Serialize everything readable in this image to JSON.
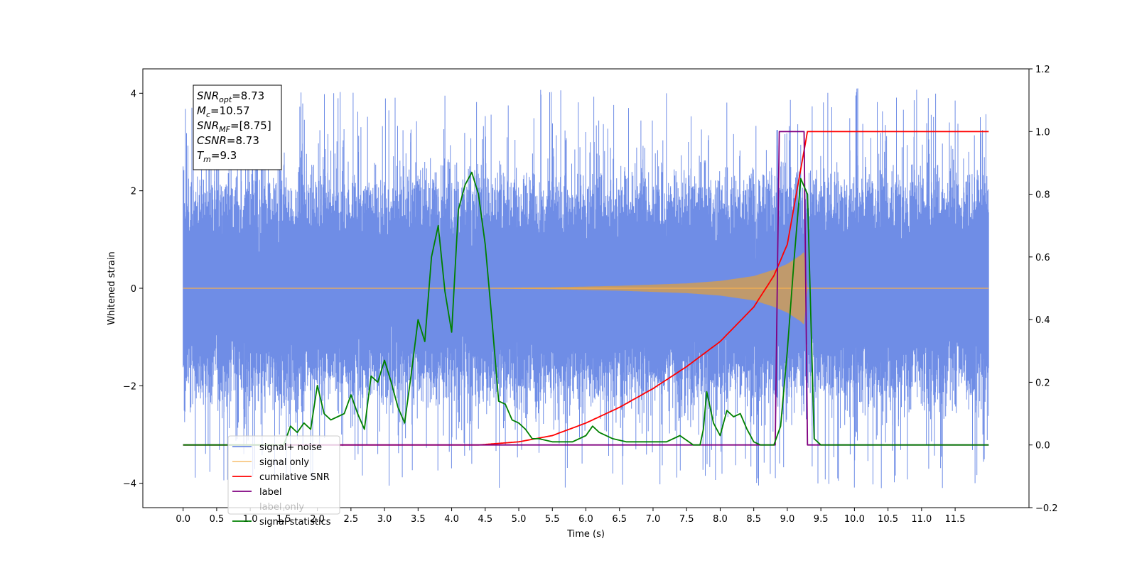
{
  "chart_data": {
    "type": "line",
    "xlabel": "Time (s)",
    "ylabel_left": "Whitened strain",
    "xlim": [
      -0.6,
      12.6
    ],
    "ylim_left": [
      -4.5,
      4.5
    ],
    "ylim_right": [
      -0.2,
      1.2
    ],
    "xticks": [
      "0.0",
      "0.5",
      "1.0",
      "1.5",
      "2.0",
      "2.5",
      "3.0",
      "3.5",
      "4.0",
      "4.5",
      "5.0",
      "5.5",
      "6.0",
      "6.5",
      "7.0",
      "7.5",
      "8.0",
      "8.5",
      "9.0",
      "9.5",
      "10.0",
      "10.5",
      "11.0",
      "11.5"
    ],
    "yticks_left": [
      "−4",
      "−2",
      "0",
      "2",
      "4"
    ],
    "yticks_right": [
      "−0.2",
      "0.0",
      "0.2",
      "0.4",
      "0.6",
      "0.8",
      "1.0",
      "1.2"
    ],
    "colors": {
      "noise": "#6f8de6",
      "signal": "#f5b050",
      "cumulative": "#ff0000",
      "label": "#800080",
      "stats": "#008000"
    },
    "legend": {
      "position": "lower-left",
      "entries": [
        "signal+ noise",
        "signal only",
        "cumilative SNR",
        "label",
        "label only",
        "signal statistics"
      ]
    },
    "annotation": [
      {
        "base": "SNR",
        "sub": "opt",
        "value": "=8.73"
      },
      {
        "base": "M",
        "sub": "c",
        "value": "=10.57"
      },
      {
        "base": "SNR",
        "sub": "MF",
        "value": "=[8.75]"
      },
      {
        "base": "CSNR",
        "sub": "",
        "value": "=8.73"
      },
      {
        "base": "T",
        "sub": "m",
        "value": "=9.3"
      }
    ],
    "series": [
      {
        "name": "signal+ noise",
        "axis": "left",
        "x_range": [
          0.0,
          12.0
        ],
        "band_upper": 2.0,
        "band_lower": -2.0,
        "peak_max": 4.1,
        "peak_min": -4.1
      },
      {
        "name": "signal only",
        "axis": "left",
        "x_range": [
          0.0,
          12.0
        ],
        "envelope": {
          "x": [
            0.0,
            4.0,
            5.5,
            6.5,
            7.5,
            8.0,
            8.5,
            8.8,
            9.0,
            9.2,
            9.25,
            9.3,
            12.0
          ],
          "y": [
            0.0,
            0.0,
            0.02,
            0.05,
            0.1,
            0.15,
            0.25,
            0.38,
            0.5,
            0.68,
            0.75,
            0.0,
            0.0
          ]
        }
      },
      {
        "name": "cumilative SNR",
        "axis": "right",
        "x": [
          0.0,
          4.4,
          5.0,
          5.5,
          6.0,
          6.5,
          7.0,
          7.5,
          8.0,
          8.5,
          8.8,
          9.0,
          9.2,
          9.3,
          12.0
        ],
        "y": [
          0.0,
          0.0,
          0.01,
          0.03,
          0.07,
          0.12,
          0.18,
          0.25,
          0.33,
          0.44,
          0.54,
          0.64,
          0.88,
          1.0,
          1.0
        ]
      },
      {
        "name": "label",
        "axis": "right",
        "x": [
          0.0,
          8.82,
          8.88,
          9.25,
          9.3,
          12.0
        ],
        "y": [
          0.0,
          0.0,
          1.0,
          1.0,
          0.0,
          0.0
        ]
      },
      {
        "name": "signal statistics",
        "axis": "right",
        "x": [
          0.0,
          1.5,
          1.6,
          1.7,
          1.8,
          1.9,
          2.0,
          2.1,
          2.2,
          2.3,
          2.4,
          2.5,
          2.6,
          2.7,
          2.8,
          2.9,
          3.0,
          3.1,
          3.2,
          3.3,
          3.4,
          3.5,
          3.6,
          3.7,
          3.8,
          3.9,
          4.0,
          4.1,
          4.2,
          4.3,
          4.4,
          4.5,
          4.6,
          4.7,
          4.8,
          4.9,
          5.0,
          5.1,
          5.2,
          5.3,
          5.5,
          5.8,
          6.0,
          6.1,
          6.2,
          6.4,
          6.6,
          6.8,
          7.0,
          7.2,
          7.4,
          7.6,
          7.7,
          7.75,
          7.8,
          7.85,
          7.9,
          8.0,
          8.1,
          8.2,
          8.3,
          8.4,
          8.5,
          8.6,
          8.7,
          8.8,
          8.9,
          9.0,
          9.1,
          9.2,
          9.3,
          9.4,
          9.5,
          9.7,
          12.0
        ],
        "y": [
          0.0,
          0.0,
          0.06,
          0.04,
          0.07,
          0.05,
          0.19,
          0.1,
          0.08,
          0.09,
          0.1,
          0.16,
          0.1,
          0.05,
          0.22,
          0.2,
          0.27,
          0.2,
          0.12,
          0.07,
          0.23,
          0.4,
          0.33,
          0.6,
          0.7,
          0.49,
          0.36,
          0.75,
          0.83,
          0.87,
          0.8,
          0.64,
          0.4,
          0.14,
          0.13,
          0.08,
          0.07,
          0.05,
          0.02,
          0.02,
          0.01,
          0.01,
          0.03,
          0.06,
          0.04,
          0.02,
          0.01,
          0.01,
          0.01,
          0.01,
          0.03,
          0.0,
          0.0,
          0.05,
          0.17,
          0.12,
          0.07,
          0.03,
          0.11,
          0.09,
          0.1,
          0.05,
          0.01,
          0.0,
          0.0,
          0.0,
          0.06,
          0.3,
          0.59,
          0.85,
          0.8,
          0.02,
          0.0,
          0.0,
          0.0
        ]
      }
    ]
  }
}
